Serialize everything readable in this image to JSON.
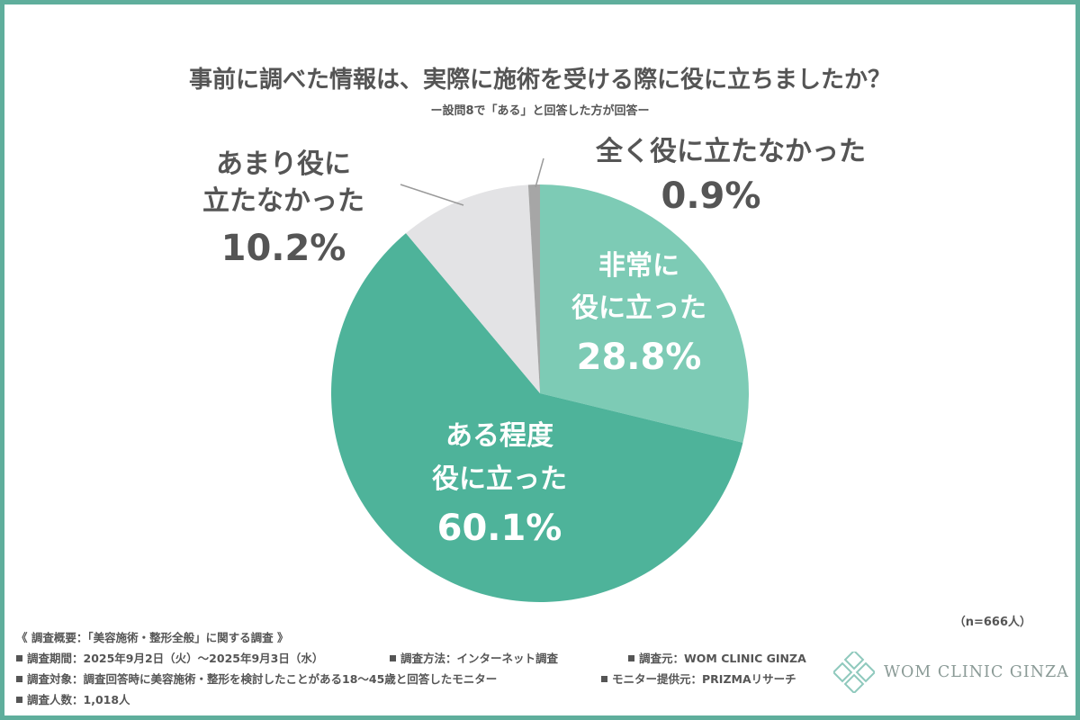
{
  "title": "事前に調べた情報は、実際に施術を受ける際に役に立ちましたか？",
  "subtitle": "ー設問8で「ある」と回答した方が回答ー",
  "sample_size": "（n=666人）",
  "chart_data": {
    "type": "pie",
    "title": "事前に調べた情報は、実際に施術を受ける際に役に立ちましたか？",
    "subtitle": "ー設問8で「ある」と回答した方が回答ー",
    "unit": "%",
    "slices": [
      {
        "label_lines": [
          "非常に",
          "役に立った"
        ],
        "label": "非常に役に立った",
        "value": 28.8,
        "value_text": "28.8%",
        "color": "#7dcbb5"
      },
      {
        "label_lines": [
          "ある程度",
          "役に立った"
        ],
        "label": "ある程度役に立った",
        "value": 60.1,
        "value_text": "60.1%",
        "color": "#4eb39a"
      },
      {
        "label_lines": [
          "あまり役に",
          "立たなかった"
        ],
        "label": "あまり役に立たなかった",
        "value": 10.2,
        "value_text": "10.2%",
        "color": "#e3e3e5"
      },
      {
        "label_lines": [
          "全く役に立たなかった"
        ],
        "label": "全く役に立たなかった",
        "value": 0.9,
        "value_text": "0.9%",
        "color": "#a6a6a6"
      }
    ]
  },
  "footer": {
    "overview": "《 調査概要：「美容施術・整形全般」に関する調査 》",
    "period": "調査期間：2025年9月2日（火）〜2025年9月3日（水）",
    "method": "調査方法：インターネット調査",
    "source": "調査元：WOM CLINIC GINZA",
    "target": "調査対象：調査回答時に美容施術・整形を検討したことがある18〜45歳と回答したモニター",
    "provider": "モニター提供元：PRIZMAリサーチ",
    "count": "調査人数：1,018人"
  },
  "logo": {
    "text": "WOM CLINIC GINZA",
    "color": "#8fc9bd"
  }
}
